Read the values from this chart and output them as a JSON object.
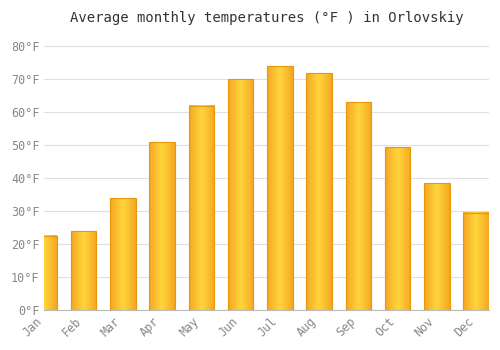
{
  "title": "Average monthly temperatures (°F ) in Orlovskiy",
  "months": [
    "Jan",
    "Feb",
    "Mar",
    "Apr",
    "May",
    "Jun",
    "Jul",
    "Aug",
    "Sep",
    "Oct",
    "Nov",
    "Dec"
  ],
  "values": [
    22.5,
    24.0,
    34.0,
    51.0,
    62.0,
    70.0,
    74.0,
    72.0,
    63.0,
    49.5,
    38.5,
    29.5
  ],
  "bar_color_left": "#F5A623",
  "bar_color_center": "#FDD835",
  "bar_color_right": "#F5A623",
  "bar_edge_color": "#E8960A",
  "background_color": "#FFFFFF",
  "grid_color": "#E0E0E0",
  "yticks": [
    0,
    10,
    20,
    30,
    40,
    50,
    60,
    70,
    80
  ],
  "ylim": [
    0,
    84
  ],
  "ylabel_suffix": "°F",
  "title_fontsize": 10,
  "tick_fontsize": 8.5,
  "font_family": "monospace"
}
